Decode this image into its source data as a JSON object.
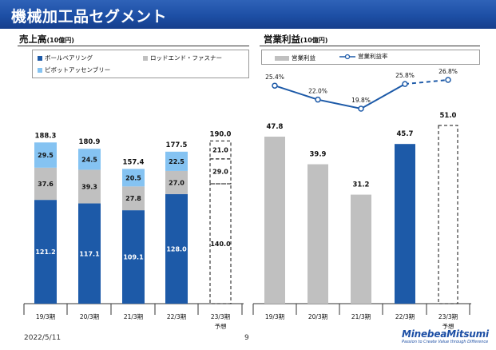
{
  "page": {
    "title": "機械加工品セグメント",
    "date": "2022/5/11",
    "page_number": "9",
    "logo_text": "MinebeaMitsumi",
    "logo_tagline": "Passion to Create Value through Difference"
  },
  "left_panel": {
    "title": "売上高",
    "unit": "(10億円)",
    "legend": [
      {
        "label": "ボールベアリング",
        "color": "#1d5aa8"
      },
      {
        "label": "ロッドエンド・ファスナー",
        "color": "#c0c0c0"
      },
      {
        "label": "ピボットアッセンブリー",
        "color": "#85c3f2"
      }
    ]
  },
  "right_panel": {
    "title": "営業利益",
    "unit": "(10億円)",
    "legend": [
      {
        "label": "営業利益",
        "color": "#c0c0c0"
      },
      {
        "label": "営業利益率",
        "color": "#1d5aa8"
      }
    ]
  },
  "chart_data": [
    {
      "type": "bar",
      "stacked": true,
      "title": "売上高",
      "categories": [
        "19/3期",
        "20/3期",
        "21/3期",
        "22/3期",
        "23/3期"
      ],
      "category_sublabels": [
        "",
        "",
        "",
        "",
        "予想"
      ],
      "series": [
        {
          "name": "ボールベアリング",
          "values": [
            121.2,
            117.1,
            109.1,
            128.0,
            140.0
          ],
          "color": "#1d5aa8"
        },
        {
          "name": "ロッドエンド・ファスナー",
          "values": [
            37.6,
            39.3,
            27.8,
            27.0,
            29.0
          ],
          "color": "#c0c0c0"
        },
        {
          "name": "ピボットアッセンブリー",
          "values": [
            29.5,
            24.5,
            20.5,
            22.5,
            21.0
          ],
          "color": "#85c3f2"
        }
      ],
      "totals": [
        "188.3",
        "180.9",
        "157.4",
        "177.5",
        "190.0"
      ],
      "value_labels": [
        [
          "121.2",
          "117.1",
          "109.1",
          "128.0",
          "140.0"
        ],
        [
          "37.6",
          "39.3",
          "27.8",
          "27.0",
          "29.0"
        ],
        [
          "29.5",
          "24.5",
          "20.5",
          "22.5",
          "21.0"
        ]
      ],
      "forecast_index": 4,
      "ylim": [
        0,
        200
      ]
    },
    {
      "type": "bar",
      "title": "営業利益",
      "categories": [
        "19/3期",
        "20/3期",
        "21/3期",
        "22/3期",
        "23/3期"
      ],
      "category_sublabels": [
        "",
        "",
        "",
        "",
        "予想"
      ],
      "series": [
        {
          "name": "営業利益",
          "values": [
            47.8,
            39.9,
            31.2,
            45.7,
            51.0
          ],
          "labels": [
            "47.8",
            "39.9",
            "31.2",
            "45.7",
            "51.0"
          ],
          "colors": [
            "#c0c0c0",
            "#c0c0c0",
            "#c0c0c0",
            "#1d5aa8",
            "none"
          ]
        }
      ],
      "line_series": {
        "name": "営業利益率",
        "type": "line",
        "values": [
          25.4,
          22.0,
          19.8,
          25.8,
          26.8
        ],
        "labels": [
          "25.4%",
          "22.0%",
          "19.8%",
          "25.8%",
          "26.8%"
        ],
        "color": "#1d5aa8"
      },
      "forecast_index": 4,
      "ylim": [
        0,
        60
      ]
    }
  ]
}
